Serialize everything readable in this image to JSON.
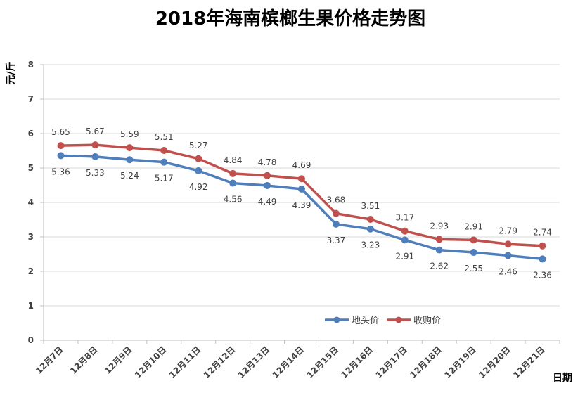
{
  "chart_data": {
    "type": "line",
    "title": "2018年海南槟榔生果价格走势图",
    "ylabel": "元/斤",
    "xlabel": "日期",
    "ylim": [
      0,
      8
    ],
    "yticks": [
      0,
      1,
      2,
      3,
      4,
      5,
      6,
      7,
      8
    ],
    "grid": true,
    "legend": "bottom-right",
    "categories": [
      "12月7日",
      "12月8日",
      "12月9日",
      "12月10日",
      "12月11日",
      "12月12日",
      "12月13日",
      "12月14日",
      "12月15日",
      "12月16日",
      "12月17日",
      "12月18日",
      "12月19日",
      "12月20日",
      "12月21日"
    ],
    "series": [
      {
        "name": "地头价",
        "color": "#4F7EBB",
        "values": [
          5.36,
          5.33,
          5.24,
          5.17,
          4.92,
          4.56,
          4.49,
          4.39,
          3.37,
          3.23,
          2.91,
          2.62,
          2.55,
          2.46,
          2.36
        ],
        "labels": [
          "5.36",
          "5.33",
          "5.24",
          "5.17",
          "4.92",
          "4.56",
          "4.49",
          "4.39",
          "3.37",
          "3.23",
          "2.91",
          "2.62",
          "2.55",
          "2.46",
          "2.36"
        ]
      },
      {
        "name": "收购价",
        "color": "#C0504D",
        "values": [
          5.65,
          5.67,
          5.59,
          5.51,
          5.27,
          4.84,
          4.78,
          4.69,
          3.68,
          3.51,
          3.17,
          2.93,
          2.91,
          2.79,
          2.74
        ],
        "labels": [
          "5.65",
          "5.67",
          "5.59",
          "5.51",
          "5.27",
          "4.84",
          "4.78",
          "4.69",
          "3.68",
          "3.51",
          "3.17",
          "2.93",
          "2.91",
          "2.79",
          "2.74"
        ]
      }
    ]
  }
}
